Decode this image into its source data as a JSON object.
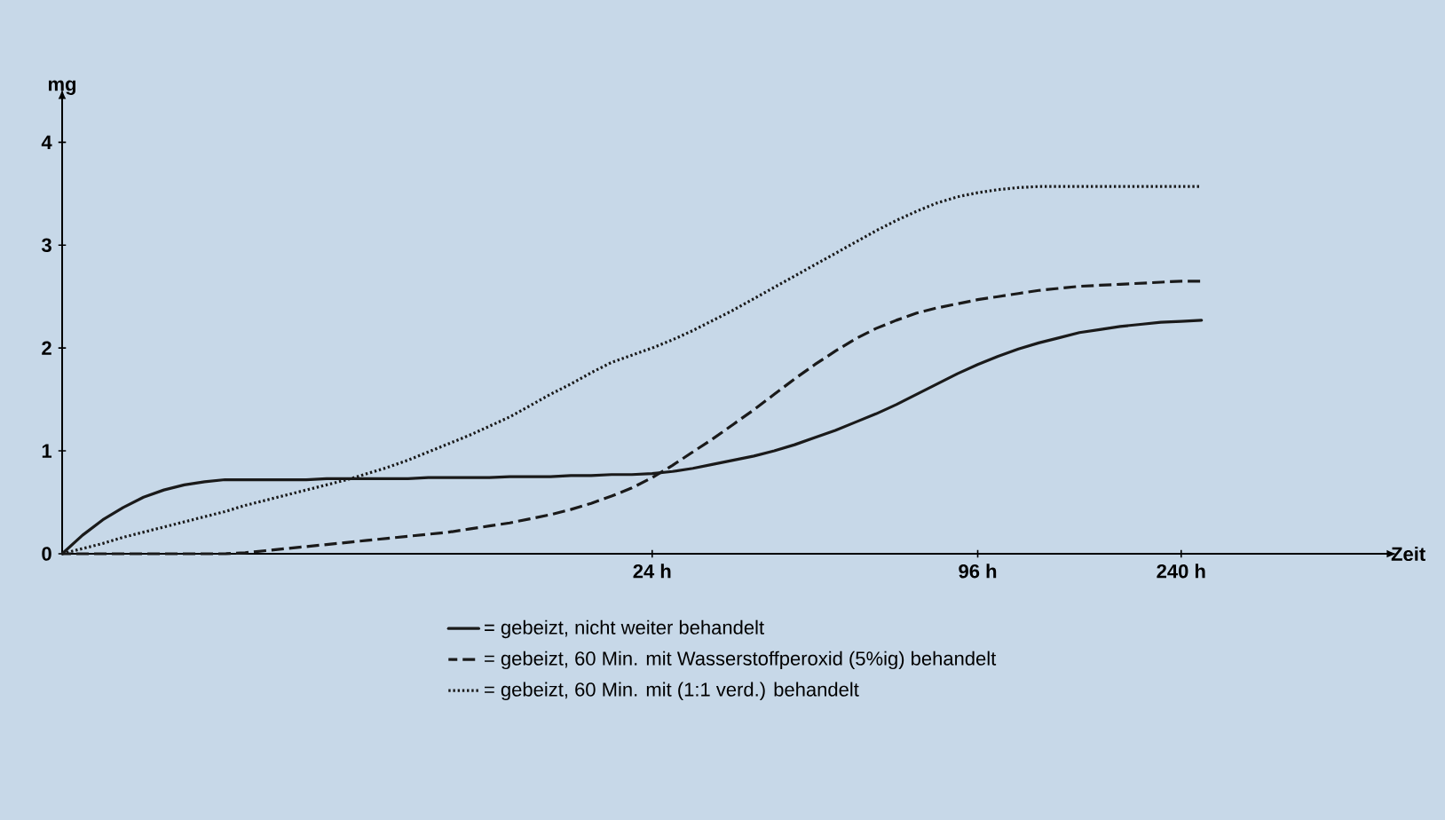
{
  "chart_data": {
    "type": "line",
    "xlabel": "Zeit",
    "ylabel": "mg",
    "ylim": [
      0,
      4.4
    ],
    "categories": [
      null,
      null,
      null,
      null,
      null,
      null,
      null,
      null,
      null,
      null,
      null,
      null,
      null,
      null,
      null,
      null,
      null,
      null,
      null,
      null,
      null,
      null,
      null,
      null,
      null,
      null,
      null,
      null,
      null,
      "24 h",
      null,
      null,
      null,
      null,
      null,
      null,
      null,
      null,
      null,
      null,
      null,
      null,
      null,
      null,
      null,
      "96 h",
      null,
      null,
      null,
      null,
      null,
      null,
      null,
      null,
      null,
      "240 h",
      null,
      null,
      null,
      null,
      null,
      null,
      null,
      null,
      null,
      null
    ],
    "yticks": [
      0,
      1,
      2,
      3,
      4
    ],
    "grid": false,
    "legend": "bottom",
    "marker": "none",
    "series": [
      {
        "name": "= gebeizt, nicht weiter behandelt",
        "color": "#1a1a1a",
        "line_style": "solid",
        "values": [
          0,
          0.18,
          0.33,
          0.45,
          0.55,
          0.62,
          0.67,
          0.7,
          0.72,
          0.72,
          0.72,
          0.72,
          0.72,
          0.73,
          0.73,
          0.73,
          0.73,
          0.73,
          0.74,
          0.74,
          0.74,
          0.74,
          0.75,
          0.75,
          0.75,
          0.76,
          0.76,
          0.77,
          0.77,
          0.78,
          0.8,
          0.83,
          0.87,
          0.91,
          0.95,
          1.0,
          1.06,
          1.13,
          1.2,
          1.28,
          1.36,
          1.45,
          1.55,
          1.65,
          1.75,
          1.84,
          1.92,
          1.99,
          2.05,
          2.1,
          2.15,
          2.18,
          2.21,
          2.23,
          2.25,
          2.26,
          2.27,
          null,
          null,
          null,
          null,
          null,
          null,
          null,
          null,
          null
        ]
      },
      {
        "name": "= gebeizt, 60 Min. mit Wasserstoffperoxid (5%ig) behandelt",
        "color": "#1a1a1a",
        "line_style": "dashed",
        "values": [
          0,
          0,
          0,
          0,
          0,
          0,
          0,
          0,
          0,
          0.01,
          0.03,
          0.05,
          0.07,
          0.09,
          0.11,
          0.13,
          0.15,
          0.17,
          0.19,
          0.21,
          0.24,
          0.27,
          0.3,
          0.34,
          0.38,
          0.43,
          0.49,
          0.56,
          0.64,
          0.74,
          0.86,
          0.99,
          1.12,
          1.26,
          1.4,
          1.55,
          1.7,
          1.84,
          1.97,
          2.09,
          2.19,
          2.27,
          2.34,
          2.39,
          2.43,
          2.47,
          2.5,
          2.53,
          2.56,
          2.58,
          2.6,
          2.61,
          2.62,
          2.63,
          2.64,
          2.65,
          2.65,
          null,
          null,
          null,
          null,
          null,
          null,
          null,
          null,
          null
        ]
      },
      {
        "name": "= gebeizt, 60 Min. mit (1:1 verd.) behandelt",
        "color": "#1a1a1a",
        "line_style": "dotted",
        "values": [
          0,
          0.05,
          0.1,
          0.16,
          0.21,
          0.26,
          0.31,
          0.36,
          0.41,
          0.47,
          0.52,
          0.57,
          0.62,
          0.67,
          0.72,
          0.78,
          0.84,
          0.91,
          0.99,
          1.07,
          1.15,
          1.24,
          1.33,
          1.44,
          1.55,
          1.65,
          1.76,
          1.86,
          1.93,
          2.0,
          2.08,
          2.17,
          2.27,
          2.37,
          2.48,
          2.59,
          2.7,
          2.81,
          2.92,
          3.03,
          3.14,
          3.24,
          3.33,
          3.41,
          3.47,
          3.51,
          3.54,
          3.56,
          3.57,
          3.57,
          3.57,
          3.57,
          3.57,
          3.57,
          3.57,
          3.57,
          3.57,
          null,
          null,
          null,
          null,
          null,
          null,
          null,
          null,
          null
        ]
      }
    ]
  }
}
